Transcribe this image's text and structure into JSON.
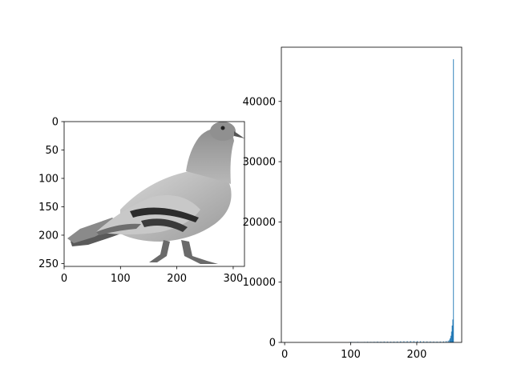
{
  "chart_data": [
    {
      "type": "image",
      "description_of_subject": "grayscale pigeon",
      "xlim": [
        0,
        320
      ],
      "ylim": [
        255,
        0
      ],
      "xticks": [
        0,
        100,
        200,
        300
      ],
      "yticks": [
        0,
        50,
        100,
        150,
        200,
        250
      ],
      "xtick_labels": [
        "0",
        "100",
        "200",
        "300"
      ],
      "ytick_labels": [
        "0",
        "50",
        "100",
        "150",
        "200",
        "250"
      ]
    },
    {
      "type": "bar",
      "title": "",
      "xlabel": "",
      "ylabel": "",
      "xlim": [
        -5,
        268
      ],
      "ylim": [
        0,
        49000
      ],
      "xticks": [
        0,
        100,
        200
      ],
      "yticks": [
        0,
        10000,
        20000,
        30000,
        40000
      ],
      "xtick_labels": [
        "0",
        "100",
        "200"
      ],
      "ytick_labels": [
        "0",
        "10000",
        "20000",
        "30000",
        "40000"
      ],
      "bar_color": "#1f77b4",
      "bins": [
        [
          98,
          60
        ],
        [
          100,
          80
        ],
        [
          105,
          70
        ],
        [
          110,
          90
        ],
        [
          115,
          60
        ],
        [
          120,
          80
        ],
        [
          125,
          100
        ],
        [
          130,
          90
        ],
        [
          135,
          110
        ],
        [
          140,
          140
        ],
        [
          145,
          120
        ],
        [
          150,
          150
        ],
        [
          155,
          130
        ],
        [
          160,
          120
        ],
        [
          165,
          140
        ],
        [
          170,
          150
        ],
        [
          175,
          180
        ],
        [
          180,
          200
        ],
        [
          185,
          210
        ],
        [
          190,
          230
        ],
        [
          195,
          220
        ],
        [
          200,
          210
        ],
        [
          205,
          190
        ],
        [
          210,
          180
        ],
        [
          215,
          170
        ],
        [
          220,
          160
        ],
        [
          225,
          150
        ],
        [
          230,
          140
        ],
        [
          235,
          150
        ],
        [
          240,
          170
        ],
        [
          244,
          220
        ],
        [
          247,
          300
        ],
        [
          249,
          450
        ],
        [
          250,
          700
        ],
        [
          251,
          1100
        ],
        [
          252,
          1800
        ],
        [
          253,
          2800
        ],
        [
          254,
          3800
        ],
        [
          255,
          47000
        ]
      ]
    }
  ]
}
